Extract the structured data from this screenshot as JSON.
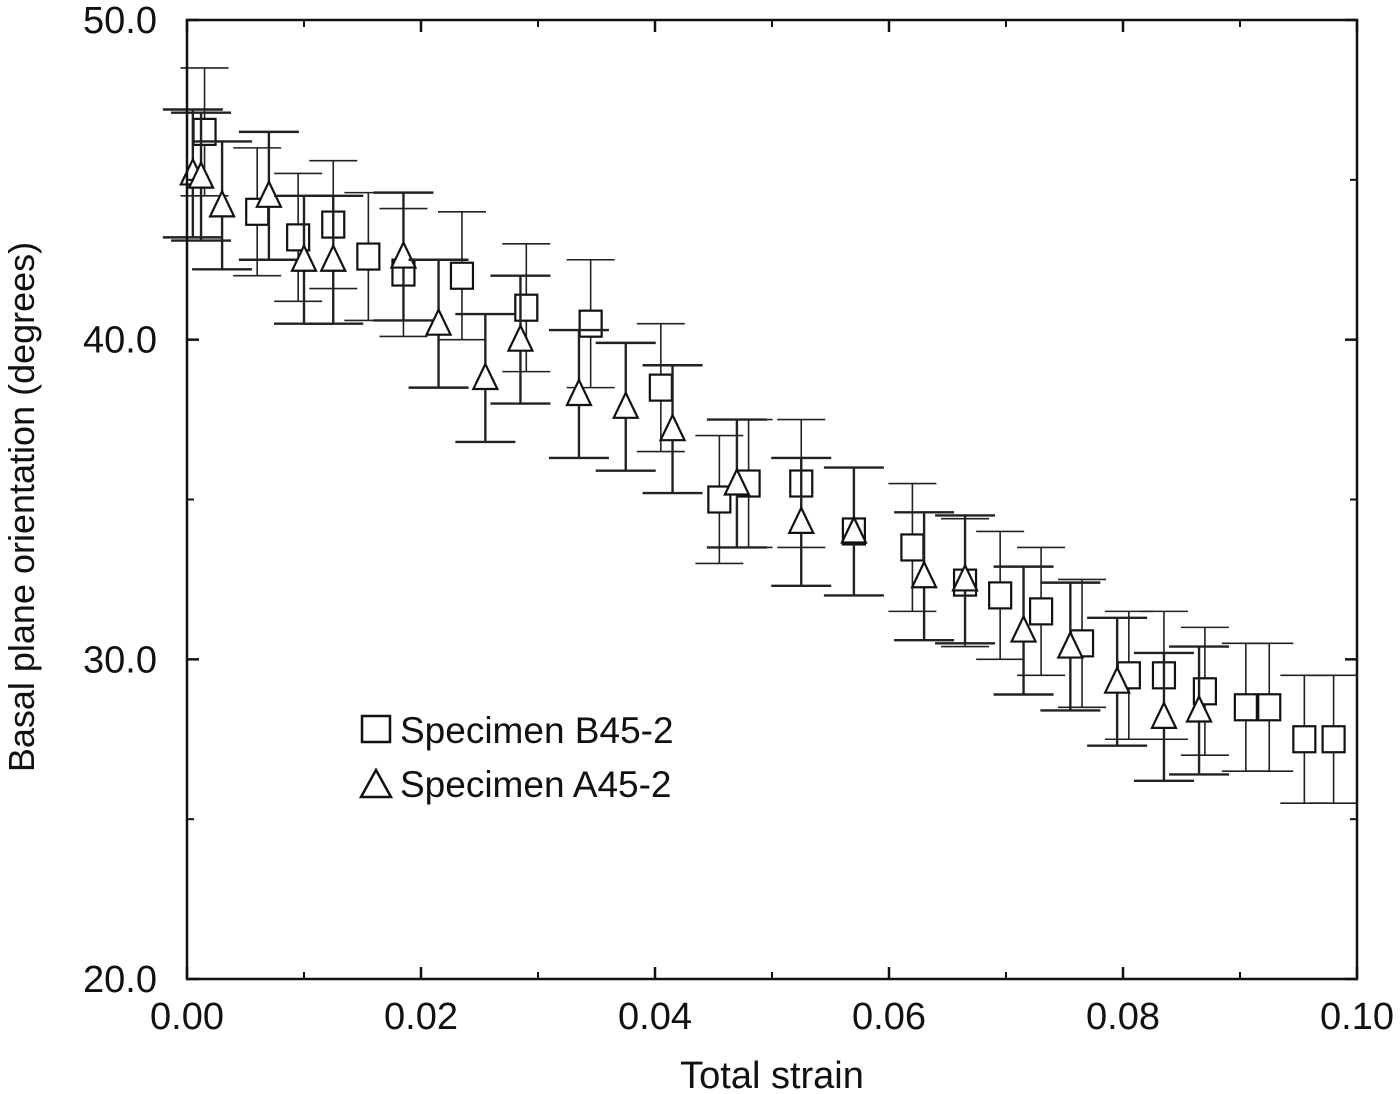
{
  "chart_data": {
    "type": "scatter",
    "title": "",
    "xlabel": "Total strain",
    "ylabel": "Basal plane orientation (degrees)",
    "xlim": [
      0.0,
      0.1
    ],
    "ylim": [
      20.0,
      50.0
    ],
    "x_ticks": [
      "0.00",
      "0.02",
      "0.04",
      "0.06",
      "0.08",
      "0.10"
    ],
    "y_ticks": [
      "20.0",
      "30.0",
      "40.0",
      "50.0"
    ],
    "grid": false,
    "legend_position": "center-left",
    "series": [
      {
        "name": "Specimen B45-2",
        "marker": "square",
        "points": [
          {
            "x": 0.0015,
            "y": 46.5,
            "err": 2.0
          },
          {
            "x": 0.006,
            "y": 44.0,
            "err": 2.0
          },
          {
            "x": 0.0095,
            "y": 43.2,
            "err": 2.0
          },
          {
            "x": 0.0125,
            "y": 43.6,
            "err": 2.0
          },
          {
            "x": 0.0155,
            "y": 42.6,
            "err": 2.0
          },
          {
            "x": 0.0185,
            "y": 42.1,
            "err": 2.0
          },
          {
            "x": 0.0235,
            "y": 42.0,
            "err": 2.0
          },
          {
            "x": 0.029,
            "y": 41.0,
            "err": 2.0
          },
          {
            "x": 0.0345,
            "y": 40.5,
            "err": 2.0
          },
          {
            "x": 0.0405,
            "y": 38.5,
            "err": 2.0
          },
          {
            "x": 0.0455,
            "y": 35.0,
            "err": 2.0
          },
          {
            "x": 0.048,
            "y": 35.5,
            "err": 2.0
          },
          {
            "x": 0.0525,
            "y": 35.5,
            "err": 2.0
          },
          {
            "x": 0.057,
            "y": 34.0,
            "err": 2.0
          },
          {
            "x": 0.062,
            "y": 33.5,
            "err": 2.0
          },
          {
            "x": 0.0665,
            "y": 32.4,
            "err": 2.0
          },
          {
            "x": 0.0695,
            "y": 32.0,
            "err": 2.0
          },
          {
            "x": 0.073,
            "y": 31.5,
            "err": 2.0
          },
          {
            "x": 0.0765,
            "y": 30.5,
            "err": 2.0
          },
          {
            "x": 0.0805,
            "y": 29.5,
            "err": 2.0
          },
          {
            "x": 0.0835,
            "y": 29.5,
            "err": 2.0
          },
          {
            "x": 0.087,
            "y": 29.0,
            "err": 2.0
          },
          {
            "x": 0.0905,
            "y": 28.5,
            "err": 2.0
          },
          {
            "x": 0.0925,
            "y": 28.5,
            "err": 2.0
          },
          {
            "x": 0.0955,
            "y": 27.5,
            "err": 2.0
          },
          {
            "x": 0.098,
            "y": 27.5,
            "err": 2.0
          }
        ]
      },
      {
        "name": "Specimen A45-2",
        "marker": "triangle",
        "points": [
          {
            "x": 0.0005,
            "y": 45.2,
            "err": 2.0
          },
          {
            "x": 0.0012,
            "y": 45.1,
            "err": 2.0
          },
          {
            "x": 0.003,
            "y": 44.2,
            "err": 2.0
          },
          {
            "x": 0.007,
            "y": 44.5,
            "err": 2.0
          },
          {
            "x": 0.01,
            "y": 42.5,
            "err": 2.0
          },
          {
            "x": 0.0125,
            "y": 42.5,
            "err": 2.0
          },
          {
            "x": 0.0185,
            "y": 42.6,
            "err": 2.0
          },
          {
            "x": 0.0215,
            "y": 40.5,
            "err": 2.0
          },
          {
            "x": 0.0255,
            "y": 38.8,
            "err": 2.0
          },
          {
            "x": 0.0285,
            "y": 40.0,
            "err": 2.0
          },
          {
            "x": 0.0335,
            "y": 38.3,
            "err": 2.0
          },
          {
            "x": 0.0375,
            "y": 37.9,
            "err": 2.0
          },
          {
            "x": 0.0415,
            "y": 37.2,
            "err": 2.0
          },
          {
            "x": 0.047,
            "y": 35.5,
            "err": 2.0
          },
          {
            "x": 0.0525,
            "y": 34.3,
            "err": 2.0
          },
          {
            "x": 0.057,
            "y": 34.0,
            "err": 2.0
          },
          {
            "x": 0.063,
            "y": 32.6,
            "err": 2.0
          },
          {
            "x": 0.0665,
            "y": 32.5,
            "err": 2.0
          },
          {
            "x": 0.0715,
            "y": 30.9,
            "err": 2.0
          },
          {
            "x": 0.0755,
            "y": 30.4,
            "err": 2.0
          },
          {
            "x": 0.0795,
            "y": 29.3,
            "err": 2.0
          },
          {
            "x": 0.0835,
            "y": 28.2,
            "err": 2.0
          },
          {
            "x": 0.0865,
            "y": 28.4,
            "err": 2.0
          }
        ]
      }
    ]
  }
}
